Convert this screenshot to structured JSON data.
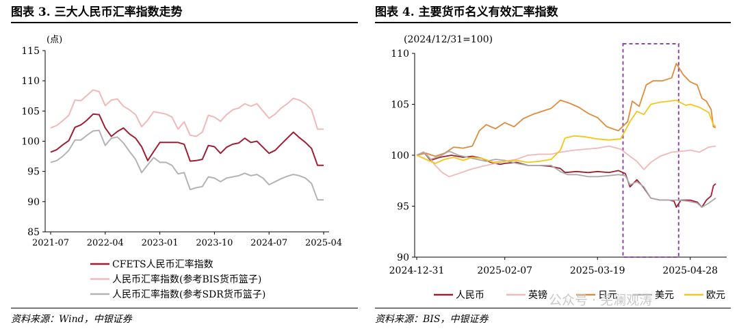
{
  "panels": [
    {
      "title": "图表 3. 三大人民币汇率指数走势",
      "source": "资料来源：Wind，中银证券"
    },
    {
      "title": "图表 4. 主要货币名义有效汇率指数",
      "source": "资料来源：BIS，中银证券"
    }
  ],
  "watermark": "公众号 · 芜澜观涛",
  "chart_data": [
    {
      "type": "line",
      "unit": "(点)",
      "ylim": [
        85,
        115
      ],
      "yticks": [
        85,
        90,
        95,
        100,
        105,
        110,
        115
      ],
      "x": [
        "2021-07",
        "2021-08",
        "2021-09",
        "2021-10",
        "2021-11",
        "2021-12",
        "2022-01",
        "2022-02",
        "2022-03",
        "2022-04",
        "2022-05",
        "2022-06",
        "2022-07",
        "2022-08",
        "2022-09",
        "2022-10",
        "2022-11",
        "2022-12",
        "2023-01",
        "2023-02",
        "2023-03",
        "2023-04",
        "2023-05",
        "2023-06",
        "2023-07",
        "2023-08",
        "2023-09",
        "2023-10",
        "2023-11",
        "2023-12",
        "2024-01",
        "2024-02",
        "2024-03",
        "2024-04",
        "2024-05",
        "2024-06",
        "2024-07",
        "2024-08",
        "2024-09",
        "2024-10",
        "2024-11",
        "2024-12",
        "2025-01",
        "2025-02",
        "2025-03",
        "2025-04"
      ],
      "xticks": [
        "2021-07",
        "2022-04",
        "2023-01",
        "2023-10",
        "2024-07",
        "2025-04"
      ],
      "legend_position": "bottom",
      "series": [
        {
          "name": "CFETS人民币汇率指数",
          "color": "#a01c30",
          "values": [
            98.2,
            98.6,
            99.4,
            100.1,
            102.3,
            102.7,
            103.5,
            104.5,
            104.4,
            102.2,
            100.8,
            101.6,
            102.2,
            101.2,
            100.5,
            99.1,
            96.8,
            98.3,
            99.8,
            99.8,
            99.8,
            99.8,
            99.5,
            96.7,
            96.8,
            97.0,
            99.3,
            99.1,
            98.0,
            99.0,
            99.5,
            99.7,
            100.5,
            99.8,
            100.0,
            99.0,
            98.0,
            98.5,
            99.5,
            100.5,
            101.5,
            100.6,
            99.8,
            98.8,
            96.0,
            96.0
          ]
        },
        {
          "name": "人民币汇率指数(参考BIS货币篮子)",
          "color": "#f0b8b8",
          "values": [
            102.2,
            102.6,
            103.4,
            104.3,
            106.8,
            106.7,
            107.6,
            108.5,
            108.2,
            105.9,
            106.8,
            107.0,
            105.8,
            105.2,
            104.4,
            102.4,
            103.5,
            104.9,
            104.7,
            104.5,
            104.0,
            102.0,
            103.2,
            101.0,
            100.8,
            101.5,
            104.3,
            104.0,
            103.3,
            104.4,
            105.2,
            105.5,
            106.2,
            105.8,
            106.2,
            105.0,
            103.8,
            104.5,
            105.5,
            106.2,
            107.1,
            106.8,
            106.2,
            105.2,
            102.0,
            102.0
          ]
        },
        {
          "name": "人民币汇率指数(参考SDR货币篮子)",
          "color": "#b3b3b3",
          "values": [
            96.5,
            96.8,
            97.5,
            98.5,
            100.2,
            100.2,
            101.0,
            101.7,
            101.8,
            99.3,
            100.5,
            100.7,
            99.7,
            98.3,
            97.0,
            94.8,
            96.1,
            97.3,
            96.5,
            96.5,
            96.0,
            94.6,
            94.8,
            92.0,
            92.3,
            92.5,
            94.1,
            93.9,
            93.3,
            93.9,
            94.1,
            94.3,
            94.7,
            94.3,
            94.5,
            93.9,
            92.8,
            93.3,
            93.8,
            94.2,
            94.5,
            94.3,
            93.9,
            93.0,
            90.3,
            90.3
          ]
        }
      ]
    },
    {
      "type": "line",
      "subtitle": "(2024/12/31=100)",
      "ylim": [
        90,
        110
      ],
      "yticks": [
        90,
        95,
        100,
        105,
        110
      ],
      "x_start": "2024-12-31",
      "x_end": "2025-05-09",
      "xticks": [
        "2024-12-31",
        "2025-02-07",
        "2025-03-19",
        "2025-04-28"
      ],
      "highlight_box": {
        "x_from": "2025-03-30",
        "x_to": "2025-04-23"
      },
      "legend_position": "bottom",
      "series": [
        {
          "name": "人民币",
          "color": "#a01c30",
          "points": [
            [
              "2024-12-31",
              100.0
            ],
            [
              "2025-01-03",
              100.3
            ],
            [
              "2025-01-06",
              99.5
            ],
            [
              "2025-01-10",
              99.8
            ],
            [
              "2025-01-15",
              100.0
            ],
            [
              "2025-01-20",
              99.8
            ],
            [
              "2025-01-24",
              99.9
            ],
            [
              "2025-01-28",
              99.7
            ],
            [
              "2025-02-01",
              99.3
            ],
            [
              "2025-02-05",
              99.1
            ],
            [
              "2025-02-07",
              99.2
            ],
            [
              "2025-02-12",
              99.3
            ],
            [
              "2025-02-17",
              99.0
            ],
            [
              "2025-02-22",
              99.0
            ],
            [
              "2025-02-27",
              98.9
            ],
            [
              "2025-03-03",
              98.7
            ],
            [
              "2025-03-05",
              98.3
            ],
            [
              "2025-03-10",
              98.4
            ],
            [
              "2025-03-15",
              98.3
            ],
            [
              "2025-03-19",
              98.4
            ],
            [
              "2025-03-24",
              98.3
            ],
            [
              "2025-03-28",
              98.5
            ],
            [
              "2025-03-31",
              98.2
            ],
            [
              "2025-04-02",
              96.9
            ],
            [
              "2025-04-05",
              97.6
            ],
            [
              "2025-04-08",
              96.8
            ],
            [
              "2025-04-11",
              95.8
            ],
            [
              "2025-04-15",
              95.6
            ],
            [
              "2025-04-19",
              95.6
            ],
            [
              "2025-04-21",
              95.5
            ],
            [
              "2025-04-22",
              94.9
            ],
            [
              "2025-04-24",
              95.6
            ],
            [
              "2025-04-28",
              95.6
            ],
            [
              "2025-05-01",
              95.4
            ],
            [
              "2025-05-03",
              94.9
            ],
            [
              "2025-05-05",
              95.6
            ],
            [
              "2025-05-07",
              96.0
            ],
            [
              "2025-05-08",
              97.0
            ],
            [
              "2025-05-09",
              97.2
            ]
          ]
        },
        {
          "name": "英镑",
          "color": "#f0b8b8",
          "points": [
            [
              "2024-12-31",
              100.0
            ],
            [
              "2025-01-04",
              100.2
            ],
            [
              "2025-01-08",
              99.0
            ],
            [
              "2025-01-11",
              98.3
            ],
            [
              "2025-01-14",
              97.9
            ],
            [
              "2025-01-18",
              98.2
            ],
            [
              "2025-01-23",
              98.6
            ],
            [
              "2025-01-28",
              98.9
            ],
            [
              "2025-02-03",
              99.2
            ],
            [
              "2025-02-07",
              99.4
            ],
            [
              "2025-02-12",
              99.6
            ],
            [
              "2025-02-17",
              100.0
            ],
            [
              "2025-02-22",
              100.1
            ],
            [
              "2025-02-27",
              100.1
            ],
            [
              "2025-03-03",
              100.3
            ],
            [
              "2025-03-09",
              100.5
            ],
            [
              "2025-03-14",
              100.6
            ],
            [
              "2025-03-19",
              100.7
            ],
            [
              "2025-03-24",
              100.9
            ],
            [
              "2025-03-29",
              100.6
            ],
            [
              "2025-04-02",
              99.9
            ],
            [
              "2025-04-05",
              99.4
            ],
            [
              "2025-04-08",
              98.6
            ],
            [
              "2025-04-11",
              99.3
            ],
            [
              "2025-04-15",
              99.9
            ],
            [
              "2025-04-20",
              100.3
            ],
            [
              "2025-04-25",
              100.4
            ],
            [
              "2025-04-28",
              100.5
            ],
            [
              "2025-05-02",
              100.3
            ],
            [
              "2025-05-06",
              100.8
            ],
            [
              "2025-05-09",
              100.9
            ]
          ]
        },
        {
          "name": "日元",
          "color": "#e08a3c",
          "points": [
            [
              "2024-12-31",
              100.0
            ],
            [
              "2025-01-04",
              100.2
            ],
            [
              "2025-01-08",
              99.9
            ],
            [
              "2025-01-12",
              100.2
            ],
            [
              "2025-01-16",
              100.8
            ],
            [
              "2025-01-20",
              100.7
            ],
            [
              "2025-01-24",
              100.9
            ],
            [
              "2025-01-27",
              102.4
            ],
            [
              "2025-01-30",
              103.0
            ],
            [
              "2025-02-03",
              102.6
            ],
            [
              "2025-02-07",
              103.2
            ],
            [
              "2025-02-11",
              102.8
            ],
            [
              "2025-02-15",
              103.6
            ],
            [
              "2025-02-19",
              104.0
            ],
            [
              "2025-02-23",
              104.3
            ],
            [
              "2025-02-27",
              104.6
            ],
            [
              "2025-03-03",
              105.4
            ],
            [
              "2025-03-07",
              105.1
            ],
            [
              "2025-03-11",
              104.7
            ],
            [
              "2025-03-15",
              104.1
            ],
            [
              "2025-03-19",
              103.7
            ],
            [
              "2025-03-23",
              102.8
            ],
            [
              "2025-03-28",
              102.4
            ],
            [
              "2025-04-01",
              103.3
            ],
            [
              "2025-04-03",
              105.3
            ],
            [
              "2025-04-06",
              104.8
            ],
            [
              "2025-04-09",
              106.9
            ],
            [
              "2025-04-12",
              107.3
            ],
            [
              "2025-04-16",
              107.3
            ],
            [
              "2025-04-20",
              107.6
            ],
            [
              "2025-04-22",
              109.0
            ],
            [
              "2025-04-25",
              107.9
            ],
            [
              "2025-04-28",
              107.2
            ],
            [
              "2025-05-01",
              106.9
            ],
            [
              "2025-05-03",
              105.6
            ],
            [
              "2025-05-05",
              105.3
            ],
            [
              "2025-05-07",
              104.5
            ],
            [
              "2025-05-08",
              102.8
            ],
            [
              "2025-05-09",
              102.7
            ]
          ]
        },
        {
          "name": "美元",
          "color": "#aaaaaa",
          "points": [
            [
              "2024-12-31",
              100.0
            ],
            [
              "2025-01-03",
              100.3
            ],
            [
              "2025-01-06",
              99.6
            ],
            [
              "2025-01-10",
              99.9
            ],
            [
              "2025-01-14",
              100.4
            ],
            [
              "2025-01-18",
              100.0
            ],
            [
              "2025-01-22",
              99.8
            ],
            [
              "2025-01-26",
              99.6
            ],
            [
              "2025-01-30",
              99.4
            ],
            [
              "2025-02-03",
              99.6
            ],
            [
              "2025-02-07",
              99.5
            ],
            [
              "2025-02-12",
              99.2
            ],
            [
              "2025-02-17",
              99.0
            ],
            [
              "2025-02-22",
              99.0
            ],
            [
              "2025-02-27",
              99.0
            ],
            [
              "2025-03-03",
              98.4
            ],
            [
              "2025-03-06",
              98.1
            ],
            [
              "2025-03-10",
              98.1
            ],
            [
              "2025-03-15",
              97.9
            ],
            [
              "2025-03-19",
              97.9
            ],
            [
              "2025-03-24",
              98.0
            ],
            [
              "2025-03-28",
              98.1
            ],
            [
              "2025-03-31",
              98.0
            ],
            [
              "2025-04-02",
              97.1
            ],
            [
              "2025-04-05",
              97.4
            ],
            [
              "2025-04-08",
              96.9
            ],
            [
              "2025-04-11",
              95.8
            ],
            [
              "2025-04-15",
              95.6
            ],
            [
              "2025-04-19",
              95.6
            ],
            [
              "2025-04-23",
              95.6
            ],
            [
              "2025-04-27",
              95.5
            ],
            [
              "2025-05-01",
              95.3
            ],
            [
              "2025-05-03",
              94.9
            ],
            [
              "2025-05-06",
              95.3
            ],
            [
              "2025-05-09",
              95.8
            ]
          ]
        },
        {
          "name": "欧元",
          "color": "#f5c518",
          "points": [
            [
              "2024-12-31",
              100.0
            ],
            [
              "2025-01-04",
              99.6
            ],
            [
              "2025-01-08",
              99.2
            ],
            [
              "2025-01-12",
              99.6
            ],
            [
              "2025-01-16",
              99.8
            ],
            [
              "2025-01-20",
              99.5
            ],
            [
              "2025-01-24",
              99.8
            ],
            [
              "2025-01-28",
              99.7
            ],
            [
              "2025-02-02",
              99.3
            ],
            [
              "2025-02-07",
              99.4
            ],
            [
              "2025-02-12",
              99.5
            ],
            [
              "2025-02-17",
              99.3
            ],
            [
              "2025-02-22",
              99.4
            ],
            [
              "2025-02-27",
              99.6
            ],
            [
              "2025-03-03",
              100.5
            ],
            [
              "2025-03-05",
              101.7
            ],
            [
              "2025-03-09",
              101.9
            ],
            [
              "2025-03-14",
              101.8
            ],
            [
              "2025-03-19",
              101.6
            ],
            [
              "2025-03-24",
              101.5
            ],
            [
              "2025-03-29",
              101.6
            ],
            [
              "2025-04-02",
              103.3
            ],
            [
              "2025-04-05",
              104.3
            ],
            [
              "2025-04-08",
              104.0
            ],
            [
              "2025-04-11",
              105.0
            ],
            [
              "2025-04-15",
              105.2
            ],
            [
              "2025-04-19",
              105.3
            ],
            [
              "2025-04-22",
              105.4
            ],
            [
              "2025-04-26",
              104.9
            ],
            [
              "2025-04-28",
              105.0
            ],
            [
              "2025-05-02",
              104.7
            ],
            [
              "2025-05-06",
              104.2
            ],
            [
              "2025-05-08",
              103.0
            ],
            [
              "2025-05-09",
              102.8
            ]
          ]
        }
      ]
    }
  ]
}
